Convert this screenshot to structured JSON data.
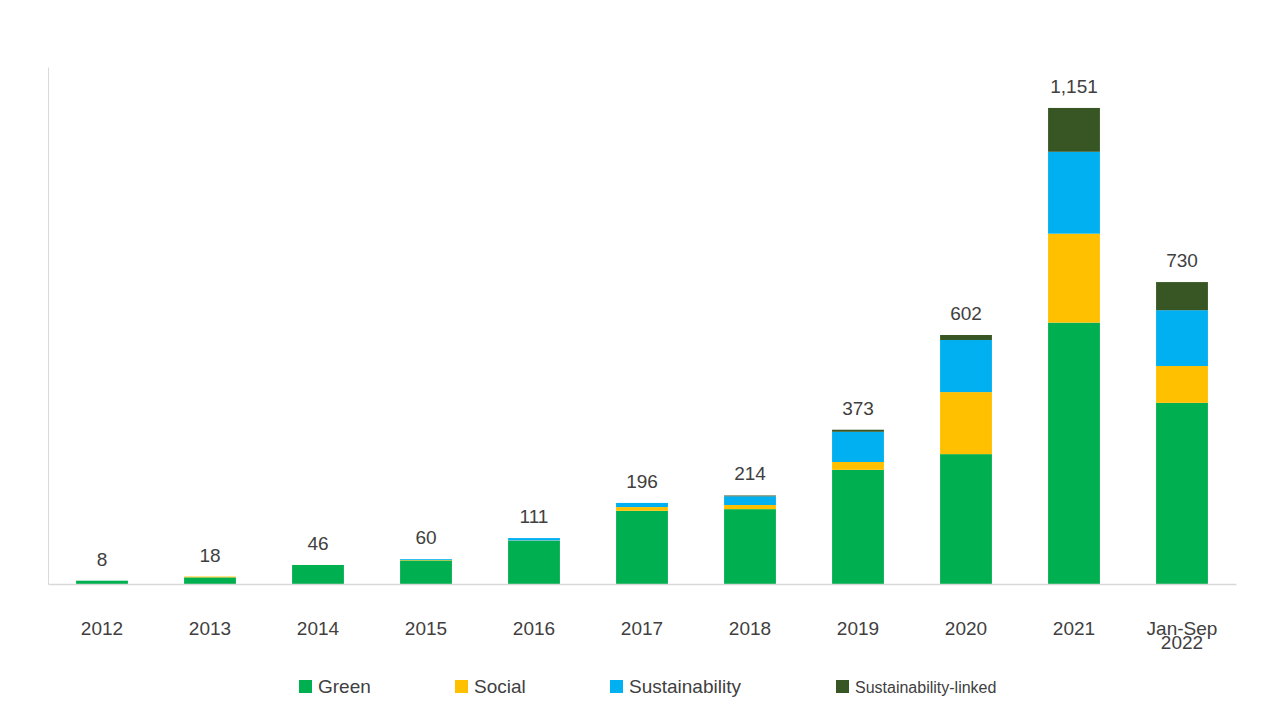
{
  "chart_data": {
    "type": "bar",
    "stacked": true,
    "categories": [
      "2012",
      "2013",
      "2014",
      "2015",
      "2016",
      "2017",
      "2018",
      "2019",
      "2020",
      "2021",
      "Jan-Sep 2022"
    ],
    "series": [
      {
        "name": "Green",
        "color": "#00b050",
        "values": [
          8,
          16,
          46,
          57,
          104,
          177,
          181,
          276,
          314,
          632,
          438
        ]
      },
      {
        "name": "Social",
        "color": "#ffc000",
        "values": [
          0,
          2,
          0,
          1,
          1,
          9,
          10,
          19,
          150,
          215,
          89
        ]
      },
      {
        "name": "Sustainability",
        "color": "#00b0f0",
        "values": [
          0,
          0,
          0,
          2,
          6,
          10,
          21,
          73,
          126,
          198,
          135
        ]
      },
      {
        "name": "Sustainability-linked",
        "color": "#375623",
        "values": [
          0,
          0,
          0,
          0,
          0,
          0,
          2,
          5,
          12,
          106,
          68
        ]
      }
    ],
    "totals": [
      8,
      18,
      46,
      60,
      111,
      196,
      214,
      373,
      602,
      1151,
      730
    ],
    "total_labels": [
      "8",
      "18",
      "46",
      "60",
      "111",
      "196",
      "214",
      "373",
      "602",
      "1,151",
      "730"
    ],
    "ylim": [
      0,
      1250
    ],
    "yticks": [],
    "tick_labels": "x",
    "legend": "bottom"
  }
}
